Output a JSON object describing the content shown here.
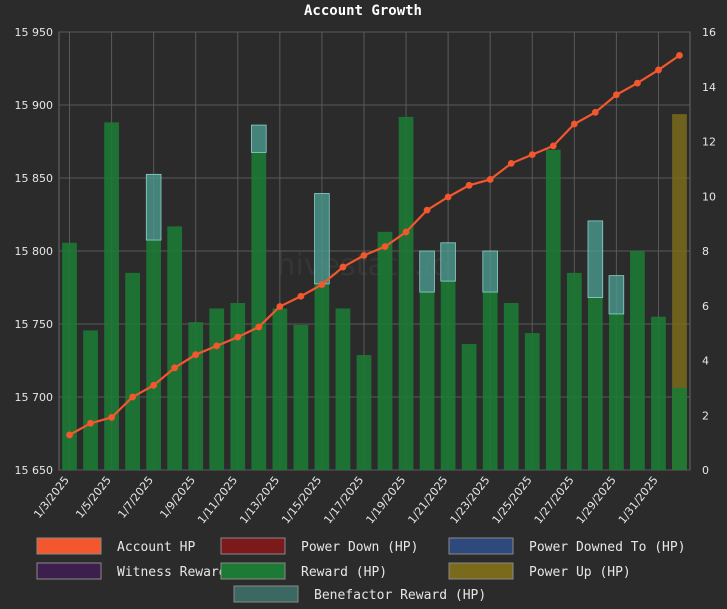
{
  "chart_data": {
    "type": "bar",
    "title": "Account Growth",
    "watermark": "hivestats.io",
    "grid": true,
    "left_axis": {
      "min": 15650,
      "max": 15950,
      "ticks": [
        "15 650",
        "15 700",
        "15 750",
        "15 800",
        "15 850",
        "15 900",
        "15 950"
      ]
    },
    "right_axis": {
      "min": 0,
      "max": 16,
      "ticks": [
        "0",
        "2",
        "4",
        "6",
        "8",
        "10",
        "12",
        "14",
        "16"
      ]
    },
    "x_labels": [
      "1/3/2025",
      "1/5/2025",
      "1/7/2025",
      "1/9/2025",
      "1/11/2025",
      "1/13/2025",
      "1/15/2025",
      "1/17/2025",
      "1/19/2025",
      "1/21/2025",
      "1/23/2025",
      "1/25/2025",
      "1/27/2025",
      "1/29/2025",
      "1/31/2025"
    ],
    "days": [
      "1/3",
      "1/4",
      "1/5",
      "1/6",
      "1/7",
      "1/8",
      "1/9",
      "1/10",
      "1/11",
      "1/12",
      "1/13",
      "1/14",
      "1/15",
      "1/16",
      "1/17",
      "1/18",
      "1/19",
      "1/20",
      "1/21",
      "1/22",
      "1/23",
      "1/24",
      "1/25",
      "1/26",
      "1/27",
      "1/28",
      "1/29",
      "1/30",
      "1/31",
      "2/1"
    ],
    "series": [
      {
        "name": "Account HP",
        "axis": "left",
        "color": "#f2572e",
        "values": [
          15674,
          15682,
          15686,
          15700,
          15708,
          15720,
          15729,
          15735,
          15741,
          15748,
          15762,
          15769,
          15777,
          15789,
          15797,
          15803,
          15813,
          15828,
          15837,
          15845,
          15849,
          15860,
          15866,
          15872,
          15887,
          15895,
          15907,
          15915,
          15924,
          15934
        ]
      },
      {
        "name": "Power Down (HP)",
        "axis": "right",
        "color": "#7a1a1a",
        "values": []
      },
      {
        "name": "Power Downed To (HP)",
        "axis": "right",
        "color": "#2e4a7d",
        "values": []
      },
      {
        "name": "Witness Reward (HP)",
        "axis": "right",
        "color": "#3d1f4d",
        "values": []
      },
      {
        "name": "Reward (HP)",
        "axis": "right",
        "color": "#1c7a34",
        "values": [
          8.3,
          5.1,
          12.7,
          7.2,
          8.4,
          8.9,
          5.4,
          5.9,
          6.1,
          11.6,
          5.9,
          5.3,
          6.8,
          5.9,
          4.2,
          8.7,
          12.9,
          6.5,
          6.9,
          4.6,
          6.5,
          6.1,
          5.0,
          11.7,
          7.2,
          6.3,
          5.7,
          8.0,
          5.6,
          3.0
        ]
      },
      {
        "name": "Power Up (HP)",
        "axis": "right",
        "color": "#7a6b1c",
        "values": [
          0,
          0,
          0,
          0,
          0,
          0,
          0,
          0,
          0,
          0,
          0,
          0,
          0,
          0,
          0,
          0,
          0,
          0,
          0,
          0,
          0,
          0,
          0,
          0,
          0,
          0,
          0,
          0,
          0,
          10.0
        ]
      },
      {
        "name": "Benefactor Reward (HP)",
        "axis": "right",
        "color": "#4a9a8f",
        "values": [
          0,
          0,
          0,
          0,
          2.4,
          0,
          0,
          0,
          0,
          1.0,
          0,
          0,
          3.3,
          0,
          0,
          0,
          0,
          1.5,
          1.4,
          0,
          1.5,
          0,
          0,
          0,
          0,
          2.8,
          1.4,
          0,
          0,
          0
        ]
      }
    ],
    "legend": [
      [
        "Account HP",
        "Power Down (HP)",
        "Power Downed To (HP)"
      ],
      [
        "Witness Reward (HP)",
        "Reward (HP)",
        "Power Up (HP)"
      ],
      [
        "Benefactor Reward (HP)"
      ]
    ]
  }
}
